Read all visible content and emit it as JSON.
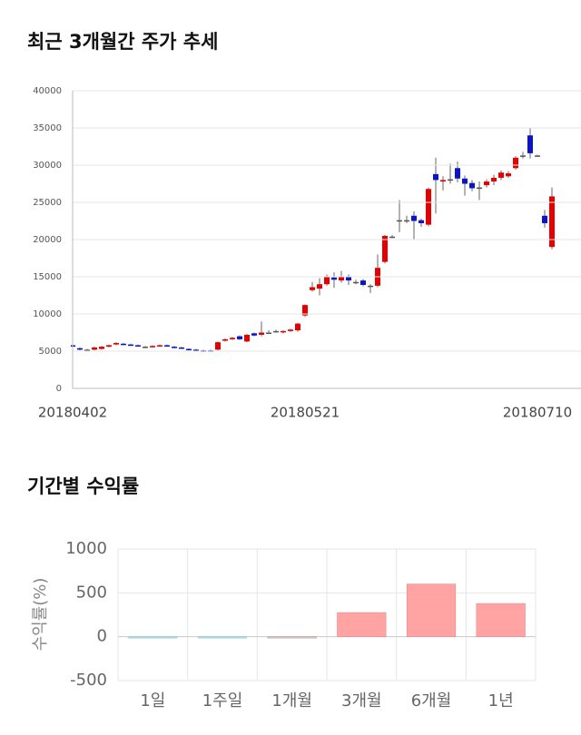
{
  "chart_data": [
    {
      "type": "candlestick",
      "title": "최근 3개월간 주가 추세",
      "categories": [
        "20180402",
        null,
        null,
        null,
        null,
        null,
        null,
        null,
        null,
        null,
        null,
        null,
        null,
        null,
        null,
        null,
        null,
        null,
        null,
        null,
        null,
        null,
        null,
        null,
        null,
        null,
        null,
        null,
        null,
        null,
        null,
        null,
        "20180521",
        null,
        null,
        null,
        null,
        null,
        null,
        null,
        null,
        null,
        null,
        null,
        null,
        null,
        null,
        null,
        null,
        null,
        null,
        null,
        null,
        null,
        null,
        null,
        null,
        null,
        null,
        null,
        null,
        null,
        null,
        null,
        "20180710",
        null,
        null
      ],
      "open": [
        5800,
        5400,
        5200,
        5200,
        5300,
        5600,
        5900,
        6000,
        5900,
        5800,
        5600,
        5600,
        5700,
        5800,
        5600,
        5500,
        5300,
        5200,
        5100,
        5100,
        5200,
        6400,
        6600,
        7000,
        6300,
        7400,
        7200,
        7500,
        7700,
        7600,
        7700,
        7800,
        9800,
        13200,
        13400,
        14000,
        14900,
        14500,
        15000,
        14300,
        14500,
        13800,
        13800,
        17000,
        20400,
        22600,
        22600,
        23200,
        22600,
        22000,
        28800,
        27800,
        28100,
        29600,
        28200,
        27600,
        27000,
        27300,
        27800,
        28300,
        28500,
        29600,
        31300,
        34000,
        31300,
        23200,
        19000
      ],
      "high": [
        5900,
        5500,
        5300,
        5600,
        5700,
        5900,
        6200,
        6100,
        6000,
        5900,
        5700,
        5800,
        5900,
        5900,
        5700,
        5600,
        5400,
        5300,
        5200,
        5200,
        6300,
        6700,
        6900,
        7100,
        7300,
        7500,
        9000,
        7800,
        7900,
        7800,
        8000,
        8800,
        11300,
        14300,
        14800,
        15300,
        15600,
        15800,
        15300,
        14600,
        14700,
        14000,
        18000,
        20600,
        20600,
        25300,
        23200,
        23800,
        22800,
        27000,
        31000,
        28500,
        30200,
        30500,
        28600,
        28000,
        27800,
        28100,
        28700,
        29300,
        29200,
        31200,
        31800,
        35000,
        31400,
        24000,
        27000
      ],
      "low": [
        5500,
        5100,
        5100,
        5100,
        5200,
        5500,
        5800,
        5800,
        5700,
        5600,
        5500,
        5500,
        5600,
        5600,
        5400,
        5300,
        5100,
        5000,
        4900,
        5000,
        5100,
        6300,
        6500,
        6500,
        6200,
        7000,
        7000,
        7300,
        7500,
        7400,
        7600,
        7600,
        9600,
        13000,
        12500,
        13800,
        13500,
        14200,
        13900,
        14000,
        13700,
        12800,
        13600,
        16800,
        20200,
        21000,
        22200,
        20000,
        21700,
        21800,
        23500,
        26600,
        27500,
        27700,
        25900,
        26500,
        25300,
        27000,
        27300,
        28000,
        28300,
        29400,
        30900,
        30900,
        31200,
        21600,
        18700
      ],
      "close": [
        5600,
        5200,
        5200,
        5500,
        5600,
        5800,
        6100,
        5900,
        5800,
        5700,
        5600,
        5700,
        5800,
        5700,
        5500,
        5400,
        5200,
        5100,
        5000,
        5000,
        6200,
        6600,
        6800,
        6600,
        7200,
        7100,
        7500,
        7500,
        7700,
        7700,
        7900,
        8700,
        11200,
        13600,
        14000,
        15000,
        14600,
        15000,
        14500,
        14300,
        13900,
        13800,
        16200,
        20500,
        20400,
        22600,
        22600,
        22500,
        22200,
        26800,
        28000,
        28000,
        28100,
        28200,
        27500,
        26900,
        27000,
        27800,
        28300,
        29000,
        28900,
        31000,
        31300,
        31600,
        31300,
        22200,
        25800
      ],
      "up_color": "#e60000",
      "down_color": "#0a14c8",
      "ylim": [
        0,
        40000
      ],
      "yticks": [
        0,
        5000,
        10000,
        15000,
        20000,
        25000,
        30000,
        35000,
        40000
      ],
      "grid": true
    },
    {
      "type": "bar",
      "title": "기간별 수익률",
      "ylabel": "수익률(%)",
      "categories": [
        "1일",
        "1주일",
        "1개월",
        "3개월",
        "6개월",
        "1년"
      ],
      "values": [
        -10,
        -8,
        0,
        275,
        600,
        378
      ],
      "colors": [
        "#a8dde0",
        "#a8dde0",
        "#a8dde0",
        "#ffa3a3",
        "#ffa3a3",
        "#ffa3a3"
      ],
      "ylim": [
        -500,
        1000
      ],
      "yticks": [
        -500,
        0,
        500,
        1000
      ],
      "grid": true
    }
  ]
}
